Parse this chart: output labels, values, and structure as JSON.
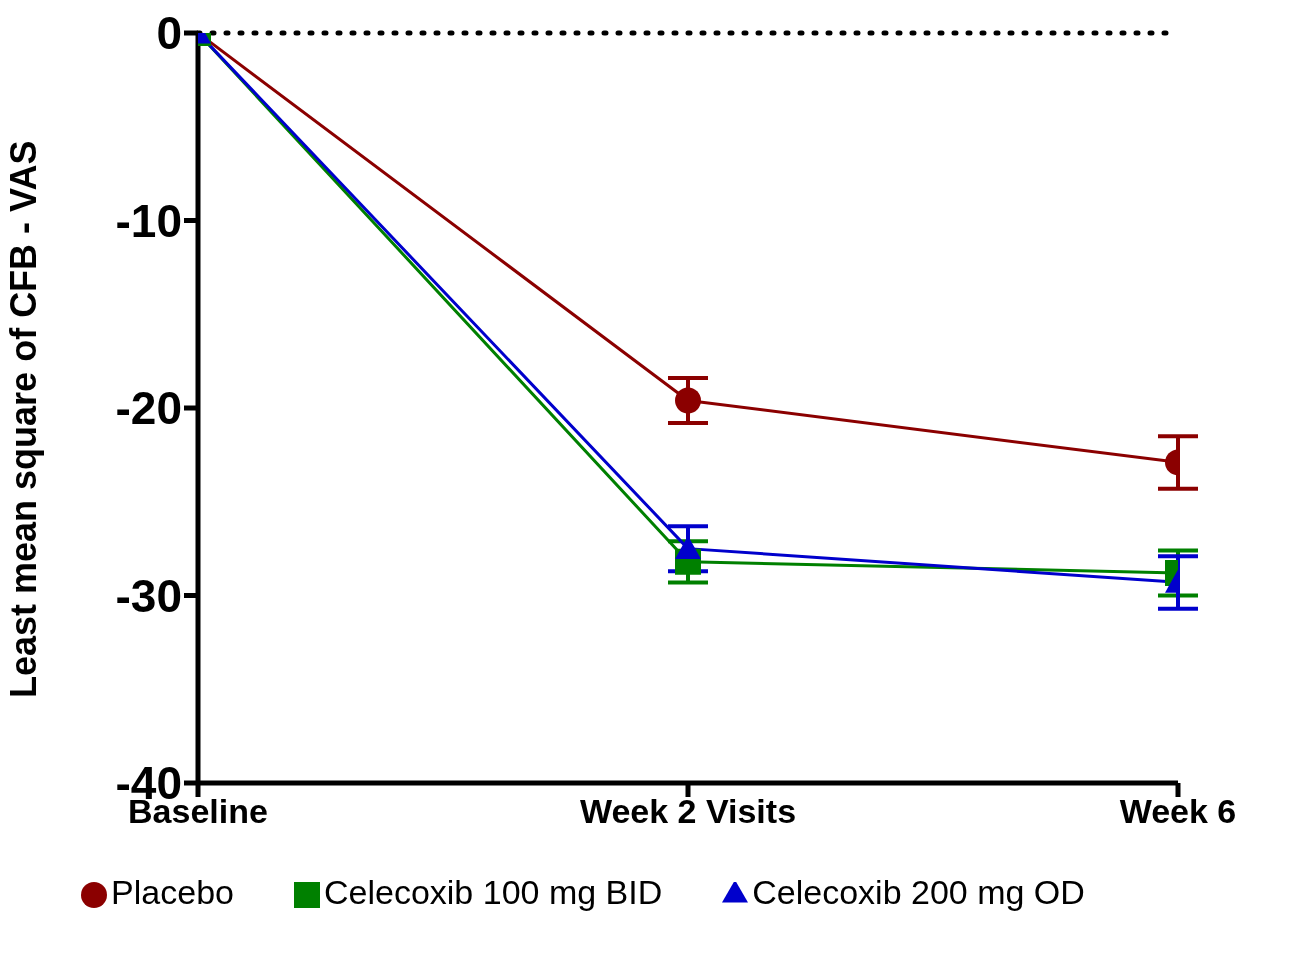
{
  "chart_data": {
    "type": "line",
    "ylabel": "Least mean square of CFB - VAS",
    "categories": [
      "Baseline",
      "Week 2 Visits",
      "Week 6"
    ],
    "ylim": [
      -40,
      0
    ],
    "yticks": [
      -40,
      -30,
      -20,
      -10,
      0
    ],
    "grid": false,
    "legend": "bottom",
    "ref_lines": [
      {
        "axis": "y",
        "value": 0,
        "color": "#000000",
        "line_style": "dotted"
      }
    ],
    "series": [
      {
        "name": "Placebo",
        "color": "#8b0000",
        "marker": "circle",
        "values": [
          0,
          -19.6,
          -22.9
        ],
        "errors": [
          null,
          1.2,
          1.4
        ]
      },
      {
        "name": "Celecoxib 100 mg BID",
        "color": "#008000",
        "marker": "square",
        "values": [
          0,
          -28.2,
          -28.8
        ],
        "errors": [
          null,
          1.1,
          1.2
        ]
      },
      {
        "name": "Celecoxib 200 mg OD",
        "color": "#0000cc",
        "marker": "triangle",
        "values": [
          0,
          -27.5,
          -29.3
        ],
        "errors": [
          null,
          1.2,
          1.4
        ]
      }
    ]
  }
}
